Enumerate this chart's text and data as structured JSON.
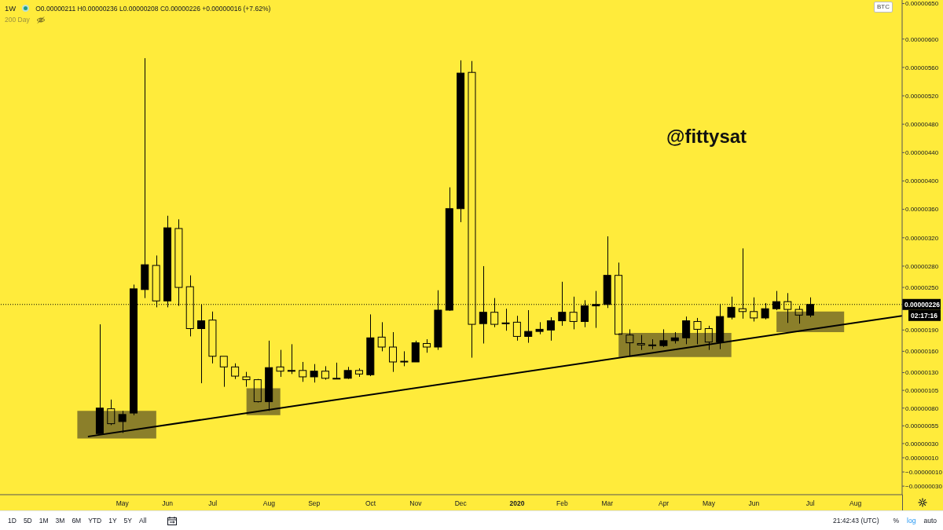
{
  "chart_data": {
    "type": "candlestick",
    "title": "1W",
    "subtitle": "O0.00000211 H0.00000236 L0.00000208 C0.00000226 +0.00000016 (+7.62%)",
    "ylabel": "BTC",
    "annotations": [
      "@fittysat",
      "02:17:16",
      "200 Day",
      "1D",
      "5D",
      "1M",
      "3M",
      "6M",
      "YTD",
      "1Y",
      "5Y",
      "All",
      "21:42:43 (UTC)",
      "%",
      "log",
      "auto"
    ],
    "x": [
      "2019-04-22",
      "2019-04-29",
      "2019-05-06",
      "2019-05-13",
      "2019-05-20",
      "2019-05-27",
      "2019-06-03",
      "2019-06-10",
      "2019-06-17",
      "2019-06-24",
      "2019-07-01",
      "2019-07-08",
      "2019-07-15",
      "2019-07-22",
      "2019-07-29",
      "2019-08-05",
      "2019-08-12",
      "2019-08-19",
      "2019-08-26",
      "2019-09-02",
      "2019-09-09",
      "2019-09-16",
      "2019-09-23",
      "2019-09-30",
      "2019-10-07",
      "2019-10-14",
      "2019-10-21",
      "2019-10-28",
      "2019-11-04",
      "2019-11-11",
      "2019-11-18",
      "2019-11-25",
      "2019-12-02",
      "2019-12-09",
      "2019-12-16",
      "2019-12-23",
      "2019-12-30",
      "2020-01-06",
      "2020-01-13",
      "2020-01-20",
      "2020-01-27",
      "2020-02-03",
      "2020-02-10",
      "2020-02-17",
      "2020-02-24",
      "2020-03-02",
      "2020-03-09",
      "2020-03-16",
      "2020-03-23",
      "2020-03-30",
      "2020-04-06",
      "2020-04-13",
      "2020-04-20",
      "2020-04-27",
      "2020-05-04",
      "2020-05-11",
      "2020-05-18",
      "2020-05-25",
      "2020-06-01",
      "2020-06-08",
      "2020-06-15",
      "2020-06-22",
      "2020-06-29",
      "2020-07-06"
    ],
    "ohlc": [
      [
        4.4e-07,
        1.98e-06,
        4.4e-07,
        8e-07
      ],
      [
        7.9e-07,
        9.2e-07,
        5.6e-07,
        5.8e-07
      ],
      [
        6.1e-07,
        7.6e-07,
        4.5e-07,
        7.1e-07
      ],
      [
        7.3e-07,
        2.54e-06,
        7e-07,
        2.48e-06
      ],
      [
        2.47e-06,
        5.73e-06,
        2.35e-06,
        2.82e-06
      ],
      [
        2.81e-06,
        2.95e-06,
        2.22e-06,
        2.31e-06
      ],
      [
        2.31e-06,
        3.51e-06,
        2.22e-06,
        3.34e-06
      ],
      [
        3.33e-06,
        3.46e-06,
        2.24e-06,
        2.5e-06
      ],
      [
        2.51e-06,
        2.67e-06,
        1.81e-06,
        1.92e-06
      ],
      [
        1.92e-06,
        2.26e-06,
        1.15e-06,
        2.03e-06
      ],
      [
        2.04e-06,
        2.16e-06,
        1.43e-06,
        1.53e-06
      ],
      [
        1.53e-06,
        1.53e-06,
        1.1e-06,
        1.38e-06
      ],
      [
        1.38e-06,
        1.43e-06,
        1.21e-06,
        1.25e-06
      ],
      [
        1.24e-06,
        1.31e-06,
        1.1e-06,
        1.2e-06
      ],
      [
        1.2e-06,
        1.21e-06,
        8.8e-07,
        8.9e-07
      ],
      [
        8.9e-07,
        1.75e-06,
        7.6e-07,
        1.37e-06
      ],
      [
        1.38e-06,
        1.62e-06,
        1.24e-06,
        1.32e-06
      ],
      [
        1.32e-06,
        1.7e-06,
        1.28e-06,
        1.33e-06
      ],
      [
        1.33e-06,
        1.45e-06,
        1.17e-06,
        1.24e-06
      ],
      [
        1.24e-06,
        1.42e-06,
        1.16e-06,
        1.32e-06
      ],
      [
        1.32e-06,
        1.39e-06,
        1.2e-06,
        1.22e-06
      ],
      [
        1.22e-06,
        1.44e-06,
        1.21e-06,
        1.21e-06
      ],
      [
        1.22e-06,
        1.38e-06,
        1.21e-06,
        1.33e-06
      ],
      [
        1.33e-06,
        1.36e-06,
        1.24e-06,
        1.28e-06
      ],
      [
        1.27e-06,
        2.12e-06,
        1.25e-06,
        1.79e-06
      ],
      [
        1.8e-06,
        2.01e-06,
        1.6e-06,
        1.66e-06
      ],
      [
        1.66e-06,
        1.87e-06,
        1.31e-06,
        1.45e-06
      ],
      [
        1.46e-06,
        1.6e-06,
        1.39e-06,
        1.45e-06
      ],
      [
        1.45e-06,
        1.75e-06,
        1.45e-06,
        1.72e-06
      ],
      [
        1.71e-06,
        1.77e-06,
        1.58e-06,
        1.66e-06
      ],
      [
        1.66e-06,
        2.46e-06,
        1.62e-06,
        2.18e-06
      ],
      [
        2.18e-06,
        3.91e-06,
        2.17e-06,
        3.61e-06
      ],
      [
        3.61e-06,
        5.7e-06,
        3.42e-06,
        5.52e-06
      ],
      [
        5.53e-06,
        5.69e-06,
        1.51e-06,
        1.98e-06
      ],
      [
        1.99e-06,
        2.8e-06,
        1.71e-06,
        2.15e-06
      ],
      [
        2.15e-06,
        2.35e-06,
        1.94e-06,
        1.98e-06
      ],
      [
        1.99e-06,
        2.2e-06,
        1.89e-06,
        2e-06
      ],
      [
        2.01e-06,
        2.1e-06,
        1.75e-06,
        1.81e-06
      ],
      [
        1.81e-06,
        2.18e-06,
        1.72e-06,
        1.88e-06
      ],
      [
        1.88e-06,
        2.01e-06,
        1.84e-06,
        1.91e-06
      ],
      [
        1.9e-06,
        2.08e-06,
        1.75e-06,
        2.03e-06
      ],
      [
        2.03e-06,
        2.58e-06,
        1.96e-06,
        2.15e-06
      ],
      [
        2.15e-06,
        2.37e-06,
        1.91e-06,
        2.02e-06
      ],
      [
        2.02e-06,
        2.32e-06,
        1.94e-06,
        2.24e-06
      ],
      [
        2.24e-06,
        2.45e-06,
        1.93e-06,
        2.26e-06
      ],
      [
        2.26e-06,
        3.22e-06,
        2.21e-06,
        2.67e-06
      ],
      [
        2.67e-06,
        2.85e-06,
        1.83e-06,
        1.84e-06
      ],
      [
        1.83e-06,
        1.91e-06,
        1.53e-06,
        1.72e-06
      ],
      [
        1.71e-06,
        1.83e-06,
        1.62e-06,
        1.69e-06
      ],
      [
        1.69e-06,
        1.77e-06,
        1.63e-06,
        1.68e-06
      ],
      [
        1.68e-06,
        1.91e-06,
        1.66e-06,
        1.75e-06
      ],
      [
        1.75e-06,
        1.87e-06,
        1.71e-06,
        1.79e-06
      ],
      [
        1.79e-06,
        2.09e-06,
        1.7e-06,
        2.03e-06
      ],
      [
        2.02e-06,
        2.07e-06,
        1.7e-06,
        1.91e-06
      ],
      [
        1.92e-06,
        1.96e-06,
        1.62e-06,
        1.73e-06
      ],
      [
        1.73e-06,
        2.27e-06,
        1.63e-06,
        2.09e-06
      ],
      [
        2.08e-06,
        2.37e-06,
        2.05e-06,
        2.22e-06
      ],
      [
        2.2e-06,
        3.05e-06,
        2.06e-06,
        2.16e-06
      ],
      [
        2.16e-06,
        2.36e-06,
        2.02e-06,
        2.07e-06
      ],
      [
        2.07e-06,
        2.28e-06,
        2.05e-06,
        2.2e-06
      ],
      [
        2.2e-06,
        2.45e-06,
        2.18e-06,
        2.3e-06
      ],
      [
        2.3e-06,
        2.42e-06,
        2e-06,
        2.19e-06
      ],
      [
        2.19e-06,
        2.24e-06,
        1.99e-06,
        2.11e-06
      ],
      [
        2.11e-06,
        2.36e-06,
        2.08e-06,
        2.26e-06
      ]
    ],
    "color": "#000000",
    "series": [
      {
        "type": "area",
        "x": [
          "2019-04-08",
          "2019-05-27"
        ],
        "values": [
          null,
          null
        ],
        "lower": [
          3.7e-07,
          3.7e-07
        ],
        "upper": [
          7.6e-07,
          7.6e-07
        ],
        "color": "#8b7f2a"
      },
      {
        "type": "area",
        "x": [
          "2019-07-22",
          "2019-08-12"
        ],
        "values": [
          null,
          null
        ],
        "lower": [
          7e-07,
          7e-07
        ],
        "upper": [
          1.08e-06,
          1.08e-06
        ],
        "color": "#8b7f2a"
      },
      {
        "type": "area",
        "x": [
          "2020-03-09",
          "2020-05-18"
        ],
        "values": [
          null,
          null
        ],
        "lower": [
          1.52e-06,
          1.52e-06
        ],
        "upper": [
          1.86e-06,
          1.86e-06
        ],
        "color": "#8b7f2a"
      },
      {
        "type": "area",
        "x": [
          "2020-06-15",
          "2020-07-27"
        ],
        "values": [
          null,
          null
        ],
        "lower": [
          1.87e-06,
          1.87e-06
        ],
        "upper": [
          2.16e-06,
          2.16e-06
        ],
        "color": "#8b7f2a"
      },
      {
        "type": "line",
        "x": [
          "2019-04-15",
          "2020-09-01"
        ],
        "values": [
          4e-07,
          2.1e-06
        ],
        "color": "#000000"
      }
    ],
    "xlim": [
      "2019-02-19",
      "2020-09-01"
    ],
    "xticks": [
      {
        "value": "2019-05-06",
        "label": "May"
      },
      {
        "value": "2019-06-03",
        "label": "Jun"
      },
      {
        "value": "2019-07-01",
        "label": "Jul"
      },
      {
        "value": "2019-08-05",
        "label": "Aug"
      },
      {
        "value": "2019-09-02",
        "label": "Sep"
      },
      {
        "value": "2019-10-07",
        "label": "Oct"
      },
      {
        "value": "2019-11-04",
        "label": "Nov"
      },
      {
        "value": "2019-12-02",
        "label": "Dec"
      },
      {
        "value": "2020-01-06",
        "label": "2020"
      },
      {
        "value": "2020-02-03",
        "label": "Feb"
      },
      {
        "value": "2020-03-02",
        "label": "Mar"
      },
      {
        "value": "2020-04-06",
        "label": "Apr"
      },
      {
        "value": "2020-05-04",
        "label": "May"
      },
      {
        "value": "2020-06-01",
        "label": "Jun"
      },
      {
        "value": "2020-07-06",
        "label": "Jul"
      },
      {
        "value": "2020-08-03",
        "label": "Aug"
      }
    ],
    "ylim": [
      -4.2e-07,
      6.55e-06
    ],
    "yticks": [
      {
        "value": 6.5e-06,
        "label": "0.00000650"
      },
      {
        "value": 6e-06,
        "label": "0.00000600"
      },
      {
        "value": 5.6e-06,
        "label": "0.00000560"
      },
      {
        "value": 5.2e-06,
        "label": "0.00000520"
      },
      {
        "value": 4.8e-06,
        "label": "0.00000480"
      },
      {
        "value": 4.4e-06,
        "label": "0.00000440"
      },
      {
        "value": 4e-06,
        "label": "0.00000400"
      },
      {
        "value": 3.6e-06,
        "label": "0.00000360"
      },
      {
        "value": 3.2e-06,
        "label": "0.00000320"
      },
      {
        "value": 2.8e-06,
        "label": "0.00000280"
      },
      {
        "value": 2.5e-06,
        "label": "0.00000250"
      },
      {
        "value": 1.9e-06,
        "label": "0.00000190"
      },
      {
        "value": 1.6e-06,
        "label": "0.00000160"
      },
      {
        "value": 1.3e-06,
        "label": "0.00000130"
      },
      {
        "value": 1.05e-06,
        "label": "0.00000105"
      },
      {
        "value": 8e-07,
        "label": "0.00000080"
      },
      {
        "value": 5.5e-07,
        "label": "0.00000055"
      },
      {
        "value": 3e-07,
        "label": "0.00000030"
      },
      {
        "value": 1e-07,
        "label": "0.00000010"
      },
      {
        "value": -1e-07,
        "label": "−0.00000010"
      },
      {
        "value": -3e-07,
        "label": "−0.00000030"
      }
    ],
    "ref_lines": [
      {
        "axis": "y",
        "value": 2.26e-06,
        "label": "0.00000226",
        "line_style": "dotted",
        "color": "#000000"
      }
    ]
  }
}
